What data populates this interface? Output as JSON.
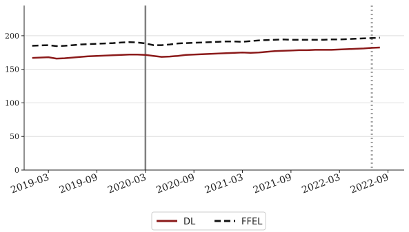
{
  "chart_data": {
    "type": "line",
    "title": "",
    "xlabel": "",
    "ylabel": "",
    "x": [
      "2019-01",
      "2019-02",
      "2019-03",
      "2019-04",
      "2019-05",
      "2019-06",
      "2019-07",
      "2019-08",
      "2019-09",
      "2019-10",
      "2019-11",
      "2019-12",
      "2020-01",
      "2020-02",
      "2020-03",
      "2020-04",
      "2020-05",
      "2020-06",
      "2020-07",
      "2020-08",
      "2020-09",
      "2020-10",
      "2020-11",
      "2020-12",
      "2021-01",
      "2021-02",
      "2021-03",
      "2021-04",
      "2021-05",
      "2021-06",
      "2021-07",
      "2021-08",
      "2021-09",
      "2021-10",
      "2021-11",
      "2021-12",
      "2022-01",
      "2022-02",
      "2022-03",
      "2022-04",
      "2022-05",
      "2022-06",
      "2022-07",
      "2022-08"
    ],
    "series": [
      {
        "name": "DL",
        "color": "#8b1a1a",
        "dash": "solid",
        "values": [
          167,
          167.5,
          168,
          166,
          166.5,
          167.5,
          168.5,
          169.5,
          170,
          170.5,
          171,
          171.5,
          172,
          172,
          171.5,
          170,
          168.5,
          169,
          170,
          171.5,
          172,
          172.5,
          173,
          173.5,
          174,
          174.5,
          175,
          174.5,
          175,
          176,
          177,
          177.5,
          178,
          178.5,
          178.5,
          179,
          179,
          179,
          179.5,
          180,
          180.5,
          181,
          182,
          182.5
        ]
      },
      {
        "name": "FFEL",
        "color": "#111111",
        "dash": "dashed",
        "values": [
          185,
          185.5,
          186,
          184.5,
          185,
          186,
          187,
          187.5,
          188,
          188.5,
          189,
          190,
          190.5,
          190,
          188.5,
          186,
          186,
          187,
          188.5,
          189,
          189.5,
          190,
          190.5,
          191,
          191.5,
          191.5,
          191,
          192,
          193,
          193.5,
          194,
          194.5,
          194,
          194,
          194,
          194,
          194,
          194.5,
          194.5,
          195,
          195.5,
          196,
          196.5,
          197
        ]
      }
    ],
    "ylim": [
      0,
      245
    ],
    "yticks": [
      0,
      50,
      100,
      150,
      200
    ],
    "xticks": [
      "2019-03",
      "2019-09",
      "2020-03",
      "2020-09",
      "2021-03",
      "2021-09",
      "2022-03",
      "2022-09"
    ],
    "xlim": [
      "2018-12",
      "2022-11"
    ],
    "vlines": [
      {
        "x": "2020-03",
        "style": "solid",
        "color": "#808080"
      },
      {
        "x": "2022-07",
        "style": "dotted",
        "color": "#a0a0a0"
      }
    ],
    "grid": "horizontal",
    "legend": {
      "placement": "bottom-center",
      "entries": [
        "DL",
        "FFEL"
      ]
    }
  }
}
